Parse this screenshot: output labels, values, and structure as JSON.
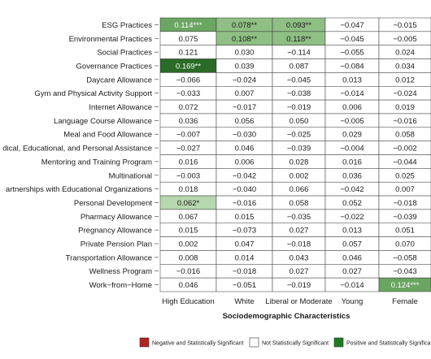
{
  "chart_data": {
    "type": "heatmap",
    "title": "",
    "xlabel": "Sociodemographic Characteristics",
    "ylabel": "",
    "columns": [
      "High Education",
      "White",
      "Liberal or Moderate",
      "Young",
      "Female"
    ],
    "rows": [
      "ESG Practices",
      "Environmental Practices",
      "Social Practices",
      "Governance Practices",
      "Daycare Allowance",
      "Gym and Physical Activity Support",
      "Internet Allowance",
      "Language Course Allowance",
      "Meal and Food Allowance",
      "dical, Educational, and Personal Assistance",
      "Mentoring and Training Program",
      "Multinational",
      "artnerships with Educational Organizations",
      "Personal Development",
      "Pharmacy Allowance",
      "Pregnancy Allowance",
      "Private Pension Plan",
      "Transportation Allowance",
      "Wellness Program",
      "Work−from−Home"
    ],
    "cells": [
      [
        {
          "v": "0.114***",
          "s": "pos3"
        },
        {
          "v": "0.078**",
          "s": "pos2"
        },
        {
          "v": "0.093**",
          "s": "pos2"
        },
        {
          "v": "−0.047",
          "s": "ns"
        },
        {
          "v": "−0.015",
          "s": "ns"
        }
      ],
      [
        {
          "v": "0.075",
          "s": "ns"
        },
        {
          "v": "0.108**",
          "s": "pos2"
        },
        {
          "v": "0.118**",
          "s": "pos2"
        },
        {
          "v": "−0.045",
          "s": "ns"
        },
        {
          "v": "−0.005",
          "s": "ns"
        }
      ],
      [
        {
          "v": "0.121",
          "s": "ns"
        },
        {
          "v": "0.030",
          "s": "ns"
        },
        {
          "v": "−0.114",
          "s": "ns"
        },
        {
          "v": "−0.055",
          "s": "ns"
        },
        {
          "v": "0.024",
          "s": "ns"
        }
      ],
      [
        {
          "v": "0.169**",
          "s": "pos2d"
        },
        {
          "v": "0.039",
          "s": "ns"
        },
        {
          "v": "0.087",
          "s": "ns"
        },
        {
          "v": "−0.084",
          "s": "ns"
        },
        {
          "v": "0.034",
          "s": "ns"
        }
      ],
      [
        {
          "v": "−0.066",
          "s": "ns"
        },
        {
          "v": "−0.024",
          "s": "ns"
        },
        {
          "v": "−0.045",
          "s": "ns"
        },
        {
          "v": "0.013",
          "s": "ns"
        },
        {
          "v": "0.012",
          "s": "ns"
        }
      ],
      [
        {
          "v": "−0.033",
          "s": "ns"
        },
        {
          "v": "0.007",
          "s": "ns"
        },
        {
          "v": "−0.038",
          "s": "ns"
        },
        {
          "v": "−0.014",
          "s": "ns"
        },
        {
          "v": "−0.024",
          "s": "ns"
        }
      ],
      [
        {
          "v": "0.072",
          "s": "ns"
        },
        {
          "v": "−0.017",
          "s": "ns"
        },
        {
          "v": "−0.019",
          "s": "ns"
        },
        {
          "v": "0.006",
          "s": "ns"
        },
        {
          "v": "0.019",
          "s": "ns"
        }
      ],
      [
        {
          "v": "0.036",
          "s": "ns"
        },
        {
          "v": "0.056",
          "s": "ns"
        },
        {
          "v": "0.050",
          "s": "ns"
        },
        {
          "v": "−0.005",
          "s": "ns"
        },
        {
          "v": "−0.016",
          "s": "ns"
        }
      ],
      [
        {
          "v": "−0.007",
          "s": "ns"
        },
        {
          "v": "−0.030",
          "s": "ns"
        },
        {
          "v": "−0.025",
          "s": "ns"
        },
        {
          "v": "0.029",
          "s": "ns"
        },
        {
          "v": "0.058",
          "s": "ns"
        }
      ],
      [
        {
          "v": "−0.027",
          "s": "ns"
        },
        {
          "v": "0.046",
          "s": "ns"
        },
        {
          "v": "−0.039",
          "s": "ns"
        },
        {
          "v": "−0.004",
          "s": "ns"
        },
        {
          "v": "−0.002",
          "s": "ns"
        }
      ],
      [
        {
          "v": "0.016",
          "s": "ns"
        },
        {
          "v": "0.006",
          "s": "ns"
        },
        {
          "v": "0.028",
          "s": "ns"
        },
        {
          "v": "0.016",
          "s": "ns"
        },
        {
          "v": "−0.044",
          "s": "ns"
        }
      ],
      [
        {
          "v": "−0.003",
          "s": "ns"
        },
        {
          "v": "−0.042",
          "s": "ns"
        },
        {
          "v": "0.002",
          "s": "ns"
        },
        {
          "v": "0.036",
          "s": "ns"
        },
        {
          "v": "0.025",
          "s": "ns"
        }
      ],
      [
        {
          "v": "0.018",
          "s": "ns"
        },
        {
          "v": "−0.040",
          "s": "ns"
        },
        {
          "v": "0.066",
          "s": "ns"
        },
        {
          "v": "−0.042",
          "s": "ns"
        },
        {
          "v": "0.007",
          "s": "ns"
        }
      ],
      [
        {
          "v": "0.062*",
          "s": "pos1"
        },
        {
          "v": "−0.016",
          "s": "ns"
        },
        {
          "v": "0.058",
          "s": "ns"
        },
        {
          "v": "0.052",
          "s": "ns"
        },
        {
          "v": "−0.018",
          "s": "ns"
        }
      ],
      [
        {
          "v": "0.067",
          "s": "ns"
        },
        {
          "v": "0.015",
          "s": "ns"
        },
        {
          "v": "−0.035",
          "s": "ns"
        },
        {
          "v": "−0.022",
          "s": "ns"
        },
        {
          "v": "−0.039",
          "s": "ns"
        }
      ],
      [
        {
          "v": "0.015",
          "s": "ns"
        },
        {
          "v": "−0.073",
          "s": "ns"
        },
        {
          "v": "0.027",
          "s": "ns"
        },
        {
          "v": "0.013",
          "s": "ns"
        },
        {
          "v": "0.051",
          "s": "ns"
        }
      ],
      [
        {
          "v": "0.002",
          "s": "ns"
        },
        {
          "v": "0.047",
          "s": "ns"
        },
        {
          "v": "−0.018",
          "s": "ns"
        },
        {
          "v": "0.057",
          "s": "ns"
        },
        {
          "v": "0.070",
          "s": "ns"
        }
      ],
      [
        {
          "v": "0.008",
          "s": "ns"
        },
        {
          "v": "0.014",
          "s": "ns"
        },
        {
          "v": "0.043",
          "s": "ns"
        },
        {
          "v": "0.046",
          "s": "ns"
        },
        {
          "v": "−0.058",
          "s": "ns"
        }
      ],
      [
        {
          "v": "−0.016",
          "s": "ns"
        },
        {
          "v": "−0.018",
          "s": "ns"
        },
        {
          "v": "0.027",
          "s": "ns"
        },
        {
          "v": "0.027",
          "s": "ns"
        },
        {
          "v": "−0.043",
          "s": "ns"
        }
      ],
      [
        {
          "v": "0.046",
          "s": "ns"
        },
        {
          "v": "−0.051",
          "s": "ns"
        },
        {
          "v": "−0.019",
          "s": "ns"
        },
        {
          "v": "−0.014",
          "s": "ns"
        },
        {
          "v": "0.124***",
          "s": "pos3"
        }
      ]
    ],
    "fills": {
      "ns": "#ffffff",
      "pos1": "#b7d7ae",
      "pos2": "#8fbf84",
      "pos2d": "#2a6b27",
      "pos3": "#6aa561"
    },
    "text_colors": {
      "ns": "#1a1a1a",
      "pos1": "#1a1a1a",
      "pos2": "#1a1a1a",
      "pos2d": "#ffffff",
      "pos3": "#ffffff"
    },
    "legend": {
      "placement": "bottom",
      "items": [
        {
          "label": "Negative and Statistically Significant",
          "color": "#b22222"
        },
        {
          "label": "Not Statistically Significant",
          "color": "#ffffff"
        },
        {
          "label": "Positive and Statistically Significant",
          "color": "#1e7b1e"
        }
      ]
    },
    "grid": false
  }
}
